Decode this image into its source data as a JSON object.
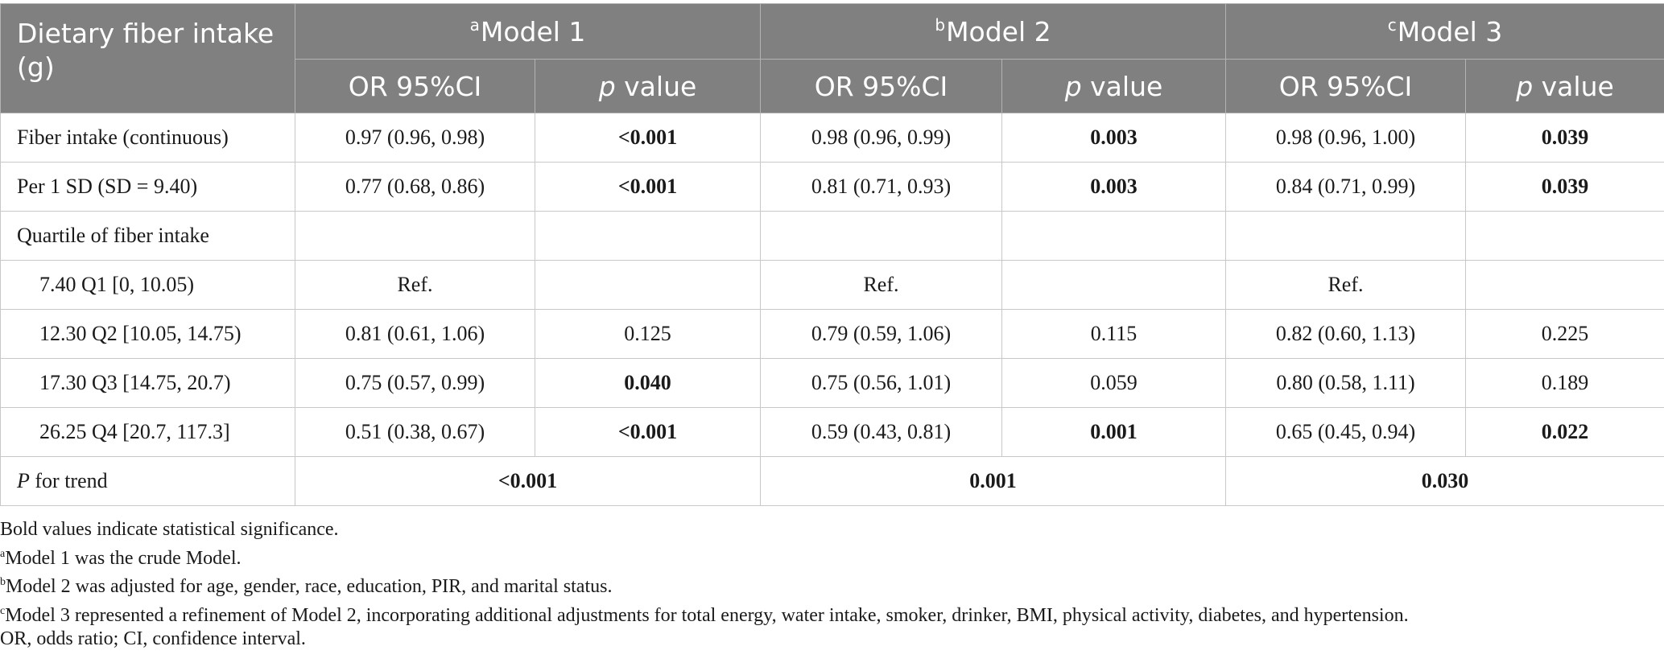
{
  "header": {
    "corner": "Dietary fiber intake (g)",
    "models": [
      {
        "sup": "a",
        "label": "Model 1"
      },
      {
        "sup": "b",
        "label": "Model 2"
      },
      {
        "sup": "c",
        "label": "Model 3"
      }
    ],
    "or_label": "OR 95%CI",
    "p_italic": "p",
    "p_rest": " value"
  },
  "rows": [
    {
      "label": "Fiber intake (continuous)",
      "m1_or": "0.97 (0.96, 0.98)",
      "m1_p": "<0.001",
      "m2_or": "0.98 (0.96, 0.99)",
      "m2_p": "0.003",
      "m3_or": "0.98 (0.96, 1.00)",
      "m3_p": "0.039"
    },
    {
      "label": "Per 1 SD (SD = 9.40)",
      "m1_or": "0.77 (0.68, 0.86)",
      "m1_p": "<0.001",
      "m2_or": "0.81 (0.71, 0.93)",
      "m2_p": "0.003",
      "m3_or": "0.84 (0.71, 0.99)",
      "m3_p": "0.039"
    },
    {
      "label": "Quartile of fiber intake",
      "m1_or": "",
      "m1_p": "",
      "m2_or": "",
      "m2_p": "",
      "m3_or": "",
      "m3_p": ""
    },
    {
      "label": "7.40 Q1 [0, 10.05)",
      "m1_or": "Ref.",
      "m1_p": "",
      "m2_or": "Ref.",
      "m2_p": "",
      "m3_or": "Ref.",
      "m3_p": ""
    },
    {
      "label": "12.30 Q2 [10.05, 14.75)",
      "m1_or": "0.81 (0.61, 1.06)",
      "m1_p": "0.125",
      "m2_or": "0.79 (0.59, 1.06)",
      "m2_p": "0.115",
      "m3_or": "0.82 (0.60, 1.13)",
      "m3_p": "0.225"
    },
    {
      "label": "17.30 Q3 [14.75, 20.7)",
      "m1_or": "0.75 (0.57, 0.99)",
      "m1_p": "0.040",
      "m2_or": "0.75 (0.56, 1.01)",
      "m2_p": "0.059",
      "m3_or": "0.80 (0.58, 1.11)",
      "m3_p": "0.189"
    },
    {
      "label": "26.25 Q4 [20.7, 117.3]",
      "m1_or": "0.51 (0.38, 0.67)",
      "m1_p": "<0.001",
      "m2_or": "0.59 (0.43, 0.81)",
      "m2_p": "0.001",
      "m3_or": "0.65 (0.45, 0.94)",
      "m3_p": "0.022"
    }
  ],
  "trend": {
    "label_italic": "P",
    "label_rest": " for trend",
    "m1": "<0.001",
    "m2": "0.001",
    "m3": "0.030"
  },
  "notes": {
    "bold_note": "Bold values indicate statistical significance.",
    "a_sup": "a",
    "a_text": "Model 1 was the crude Model.",
    "b_sup": "b",
    "b_text": "Model 2 was adjusted for age, gender, race, education, PIR, and marital status.",
    "c_sup": "c",
    "c_text": "Model 3 represented a refinement of Model 2, incorporating additional adjustments for total energy, water intake, smoker, drinker, BMI, physical activity, diabetes, and hypertension.",
    "abbrev": "OR, odds ratio; CI, confidence interval."
  }
}
